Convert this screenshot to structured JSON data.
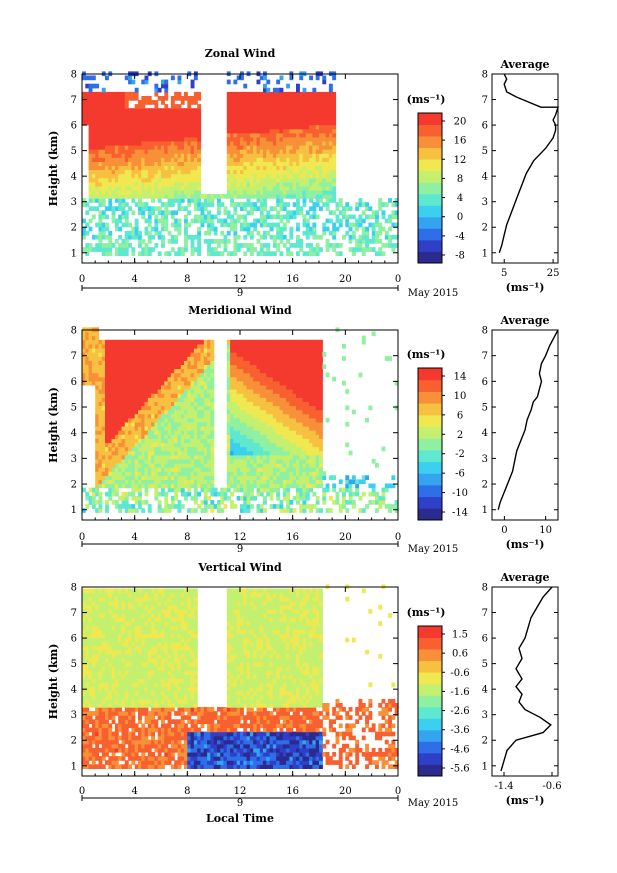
{
  "figure": {
    "xlabel": "Local Time",
    "date_label": "May 2015",
    "day_label": "9",
    "avg_title": "Average"
  },
  "chart_data": [
    {
      "type": "heatmap",
      "title": "Zonal Wind",
      "ylabel": "Height (km)",
      "xlabel": "",
      "xlim": [
        0,
        24
      ],
      "ylim": [
        0.6,
        8
      ],
      "xticks": [
        "0",
        "4",
        "8",
        "12",
        "16",
        "20",
        "0"
      ],
      "yticks": [
        "1",
        "2",
        "3",
        "4",
        "5",
        "6",
        "7",
        "8"
      ],
      "colorbar": {
        "unit": "(ms⁻¹)",
        "ticks": [
          "20",
          "16",
          "12",
          "8",
          "4",
          "0",
          "-4",
          "-8"
        ],
        "range": [
          -10,
          22
        ]
      },
      "profile": {
        "title": "Average",
        "xlabel": "(ms⁻¹)",
        "xticks": [
          "5",
          "25"
        ],
        "xlim": [
          0,
          27
        ],
        "x": [
          3,
          4,
          5,
          6,
          8,
          10,
          12,
          14,
          17,
          20,
          22,
          23.5,
          25,
          26,
          26,
          25,
          26,
          27,
          20,
          15,
          10,
          6,
          5,
          6,
          5
        ],
        "y": [
          1,
          1.3,
          1.7,
          2.1,
          2.6,
          3.1,
          3.6,
          4.1,
          4.6,
          4.9,
          5.1,
          5.3,
          5.5,
          5.8,
          6.0,
          6.2,
          6.4,
          6.7,
          6.7,
          6.9,
          7.1,
          7.3,
          7.6,
          7.8,
          8.0
        ]
      }
    },
    {
      "type": "heatmap",
      "title": "Meridional Wind",
      "ylabel": "Height (km)",
      "xlabel": "",
      "xlim": [
        0,
        24
      ],
      "ylim": [
        0.6,
        8
      ],
      "xticks": [
        "0",
        "4",
        "8",
        "12",
        "16",
        "20",
        "0"
      ],
      "yticks": [
        "1",
        "2",
        "3",
        "4",
        "5",
        "6",
        "7",
        "8"
      ],
      "colorbar": {
        "unit": "(ms⁻¹)",
        "ticks": [
          "14",
          "10",
          "6",
          "2",
          "-2",
          "-6",
          "-10",
          "-14"
        ],
        "range": [
          -16,
          16
        ]
      },
      "profile": {
        "title": "Average",
        "xlabel": "(ms⁻¹)",
        "xticks": [
          "0",
          "10"
        ],
        "xlim": [
          -3,
          13
        ],
        "x": [
          -1.5,
          -1,
          0,
          1,
          2,
          2.5,
          3,
          4,
          5,
          5.5,
          6.5,
          7,
          8,
          8.5,
          9,
          8.5,
          9,
          10,
          11,
          12,
          13
        ],
        "y": [
          1,
          1.3,
          1.7,
          2.1,
          2.5,
          2.9,
          3.3,
          3.7,
          4.1,
          4.5,
          4.9,
          5.2,
          5.4,
          5.7,
          6.0,
          6.3,
          6.7,
          7.0,
          7.4,
          7.7,
          8.0
        ]
      }
    },
    {
      "type": "heatmap",
      "title": "Vertical Wind",
      "ylabel": "Height (km)",
      "xlabel": "Local Time",
      "xlim": [
        0,
        24
      ],
      "ylim": [
        0.6,
        8
      ],
      "xticks": [
        "0",
        "4",
        "8",
        "12",
        "16",
        "20",
        "0"
      ],
      "yticks": [
        "1",
        "2",
        "3",
        "4",
        "5",
        "6",
        "7",
        "8"
      ],
      "colorbar": {
        "unit": "(ms⁻¹)",
        "ticks": [
          "1.5",
          "0.6",
          "-0.6",
          "-1.6",
          "-2.6",
          "-3.6",
          "-4.6",
          "-5.6"
        ],
        "range": [
          -6.0,
          2.0
        ]
      },
      "profile": {
        "title": "Average",
        "xlabel": "(ms⁻¹)",
        "xticks": [
          "-1.4",
          "-0.6"
        ],
        "xlim": [
          -1.6,
          -0.5
        ],
        "x": [
          -1.45,
          -1.4,
          -1.35,
          -1.2,
          -0.75,
          -0.62,
          -0.8,
          -1.05,
          -1.15,
          -1.1,
          -1.2,
          -1.1,
          -1.2,
          -1.1,
          -1.15,
          -1.05,
          -1.0,
          -0.95,
          -0.85,
          -0.75,
          -0.6
        ],
        "y": [
          0.8,
          1.2,
          1.6,
          2.0,
          2.3,
          2.6,
          2.9,
          3.2,
          3.5,
          3.8,
          4.1,
          4.4,
          4.8,
          5.2,
          5.6,
          6.0,
          6.4,
          6.8,
          7.2,
          7.6,
          8.0
        ]
      }
    }
  ]
}
